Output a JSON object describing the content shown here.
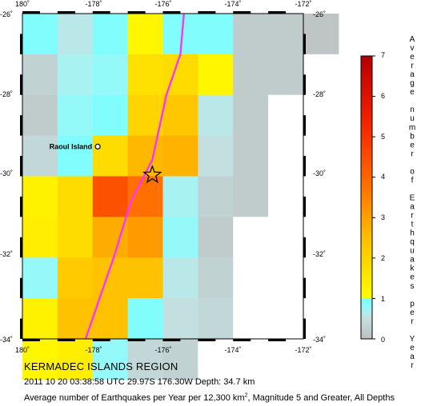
{
  "map": {
    "lon_ticks": [
      "180˚",
      "-178˚",
      "-176˚",
      "-174˚",
      "-172˚"
    ],
    "lat_ticks": [
      "-26˚",
      "-28˚",
      "-30˚",
      "-32˚",
      "-34˚"
    ],
    "lon_range": [
      -180,
      -172
    ],
    "lat_range": [
      -34,
      -26
    ],
    "cell_size_deg": 1,
    "grid_columns_lon_start": -180,
    "grid_rows_lat_start": -26,
    "rate_grid": [
      [
        0.9,
        0.6,
        0.9,
        1.2,
        0.9,
        0.9,
        0.2,
        0.2,
        0.1
      ],
      [
        0.3,
        0.7,
        0.8,
        1.7,
        1.8,
        1.2,
        0.2,
        0.2,
        null
      ],
      [
        0.2,
        0.8,
        0.9,
        2.0,
        2.3,
        0.6,
        0.2,
        null,
        null
      ],
      [
        0.4,
        0.9,
        1.8,
        2.6,
        2.7,
        0.5,
        0.2,
        null,
        null
      ],
      [
        1.3,
        1.8,
        4.4,
        3.8,
        0.7,
        0.3,
        0.2,
        null,
        null
      ],
      [
        1.4,
        1.8,
        2.8,
        3.1,
        0.8,
        0.2,
        null,
        null,
        null
      ],
      [
        0.8,
        2.2,
        2.4,
        2.4,
        0.6,
        0.3,
        null,
        null,
        null
      ],
      [
        1.3,
        2.4,
        2.4,
        0.9,
        0.5,
        0.4,
        null,
        null,
        null
      ],
      [
        1.2,
        1.4,
        0.8,
        0.4,
        0.3,
        null,
        null,
        null,
        null
      ]
    ],
    "trench_line": [
      [
        -175.4,
        -26.0
      ],
      [
        -175.5,
        -27.0
      ],
      [
        -175.9,
        -28.0
      ],
      [
        -176.3,
        -29.6
      ],
      [
        -176.9,
        -30.6
      ],
      [
        -177.4,
        -32.0
      ],
      [
        -177.8,
        -33.0
      ],
      [
        -178.2,
        -34.0
      ]
    ],
    "place": {
      "name": "Raoul Island",
      "lon": -177.9,
      "lat": -29.27
    },
    "epicenter": {
      "lon": -176.3,
      "lat": -29.97
    }
  },
  "colorbar": {
    "title": "Average number of Earthquakes per Year",
    "tick_labels": [
      "0",
      "1",
      "2",
      "3",
      "4",
      "5",
      "6",
      "7"
    ],
    "range": [
      0,
      7
    ],
    "color_stops": [
      {
        "value": 0,
        "color": "#bebebe"
      },
      {
        "value": 1,
        "color": "#c8ffff"
      },
      {
        "value": 1.0001,
        "color": "#ffff00"
      },
      {
        "value": 2.5,
        "color": "#ffbe00"
      },
      {
        "value": 4,
        "color": "#ff6400"
      },
      {
        "value": 5.5,
        "color": "#f01e00"
      },
      {
        "value": 7,
        "color": "#b40000"
      }
    ],
    "cyan_band_dark": "#64ffff"
  },
  "colors": {
    "trench": "#ff33ff",
    "no_data": "#ffffff",
    "frame": "#000000"
  },
  "caption": {
    "region": "KERMADEC ISLANDS REGION",
    "event": "2011 10 20 03:38:58 UTC 29.97S 176.30W Depth: 34.7 km",
    "note_prefix": "Average number of Earthquakes per Year per 12,300 km",
    "note_sup": "2",
    "note_suffix": ", Magnitude 5 and Greater, All Depths"
  }
}
